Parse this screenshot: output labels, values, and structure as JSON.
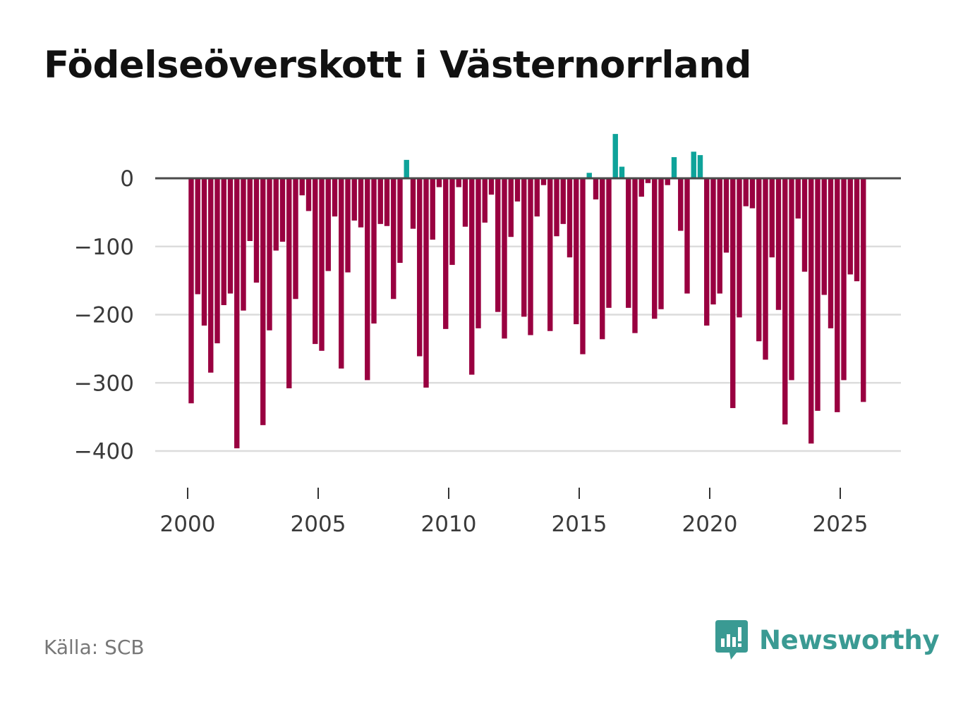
{
  "title": "Födelseöverskott i Västernorrland",
  "source": "Källa: SCB",
  "brand": "Newsworthy",
  "colors": {
    "positive": "#0ea39a",
    "negative": "#990040",
    "zero_line": "#4a4a4a",
    "grid": "#dcdcdc",
    "brand": "#3a9a93"
  },
  "chart_data": {
    "type": "bar",
    "title": "Födelseöverskott i Västernorrland",
    "xlabel": "",
    "ylabel": "",
    "period": "monthly (quarter-ish bars, approx. 4 per year shown here per year-span)",
    "x_start": 2000.0,
    "x_step": 0.25,
    "ylim": [
      -460,
      75
    ],
    "xlim": [
      1998.6,
      2027.2
    ],
    "y_ticks": [
      0,
      -100,
      -200,
      -300,
      -400
    ],
    "y_tick_labels": [
      "0",
      "−100",
      "−200",
      "−300",
      "−400"
    ],
    "x_ticks": [
      2000,
      2005,
      2010,
      2015,
      2020,
      2025
    ],
    "x_tick_labels": [
      "2000",
      "2005",
      "2010",
      "2015",
      "2020",
      "2025"
    ],
    "values": [
      -330,
      -170,
      -216,
      -285,
      -242,
      -186,
      -169,
      -396,
      -194,
      -92,
      -153,
      -362,
      -223,
      -106,
      -93,
      -308,
      -177,
      -25,
      -48,
      -243,
      -253,
      -136,
      -56,
      -279,
      -138,
      -62,
      -72,
      -296,
      -213,
      -67,
      -70,
      -177,
      -124,
      27,
      -74,
      -261,
      -307,
      -90,
      -13,
      -221,
      -127,
      -13,
      -71,
      -288,
      -220,
      -65,
      -24,
      -196,
      -235,
      -86,
      -34,
      -203,
      -230,
      -56,
      -10,
      -224,
      -85,
      -67,
      -116,
      -214,
      -258,
      8,
      -31,
      -236,
      -190,
      65,
      17,
      -190,
      -227,
      -27,
      -7,
      -206,
      -192,
      -10,
      31,
      -77,
      -169,
      39,
      34,
      -216,
      -185,
      -169,
      -109,
      -337,
      -204,
      -41,
      -44,
      -239,
      -266,
      -116,
      -193,
      -361,
      -296,
      -59,
      -137,
      -389,
      -341,
      -171,
      -220,
      -343,
      -296,
      -141,
      -151,
      -328
    ]
  }
}
